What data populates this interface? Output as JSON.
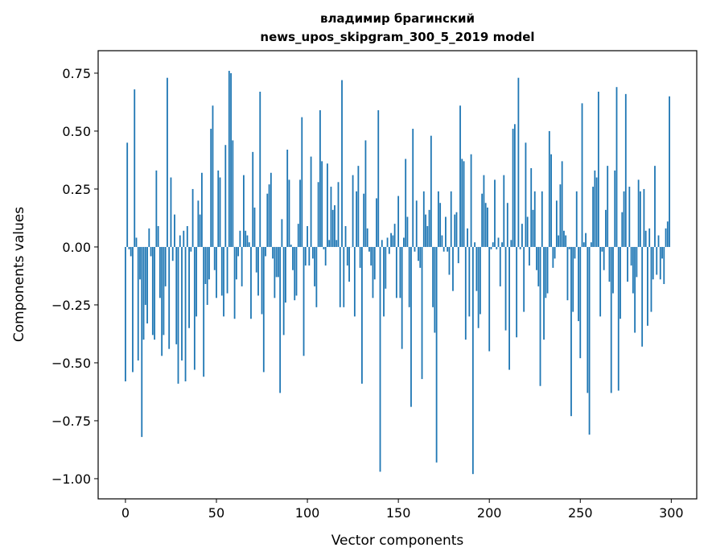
{
  "chart_data": {
    "type": "bar",
    "title": "владимир брагинский",
    "subtitle": "news_upos_skipgram_300_5_2019 model",
    "xlabel": "Vector components",
    "ylabel": "Components values",
    "xlim": [
      -15,
      314
    ],
    "ylim": [
      -1.087,
      0.847
    ],
    "xticks": [
      0,
      50,
      100,
      150,
      200,
      250,
      300
    ],
    "xtick_labels": [
      "0",
      "50",
      "100",
      "150",
      "200",
      "250",
      "300"
    ],
    "yticks": [
      -1.0,
      -0.75,
      -0.5,
      -0.25,
      0.0,
      0.25,
      0.5,
      0.75
    ],
    "ytick_labels": [
      "−1.00",
      "−0.75",
      "−0.50",
      "−0.25",
      "0.00",
      "0.25",
      "0.50",
      "0.75"
    ],
    "grid": false,
    "bar_color": "#1f77b4",
    "bar_width": 0.8,
    "values": [
      -0.58,
      0.45,
      -0.01,
      -0.04,
      -0.54,
      0.68,
      0.04,
      -0.49,
      -0.14,
      -0.82,
      -0.4,
      -0.25,
      -0.33,
      0.08,
      -0.04,
      -0.38,
      -0.4,
      0.33,
      0.09,
      -0.22,
      -0.47,
      -0.38,
      -0.17,
      0.73,
      -0.44,
      0.3,
      -0.06,
      0.14,
      -0.42,
      -0.59,
      0.05,
      -0.49,
      0.07,
      -0.58,
      0.09,
      -0.35,
      -0.02,
      0.25,
      -0.53,
      -0.3,
      0.2,
      0.14,
      0.32,
      -0.56,
      -0.16,
      -0.25,
      -0.14,
      0.51,
      0.61,
      -0.1,
      -0.22,
      0.33,
      0.3,
      -0.21,
      -0.3,
      0.44,
      -0.2,
      0.76,
      0.75,
      0.46,
      -0.31,
      -0.14,
      -0.04,
      0.07,
      -0.17,
      0.31,
      0.07,
      0.05,
      0.02,
      -0.31,
      0.41,
      0.17,
      -0.11,
      -0.21,
      0.67,
      -0.29,
      -0.54,
      -0.04,
      0.23,
      0.27,
      0.32,
      -0.05,
      -0.22,
      -0.13,
      -0.13,
      -0.63,
      0.12,
      -0.38,
      -0.24,
      0.42,
      0.29,
      0.01,
      -0.1,
      -0.23,
      -0.21,
      0.1,
      0.29,
      0.56,
      -0.47,
      -0.08,
      0.09,
      -0.08,
      0.39,
      -0.05,
      -0.17,
      -0.26,
      0.28,
      0.59,
      0.37,
      -0.01,
      -0.08,
      0.36,
      0.03,
      0.26,
      0.16,
      0.18,
      0.03,
      0.28,
      -0.26,
      0.72,
      -0.26,
      0.09,
      -0.08,
      -0.15,
      0.0,
      0.31,
      -0.3,
      0.24,
      0.35,
      -0.09,
      -0.59,
      0.23,
      0.46,
      0.08,
      -0.02,
      -0.08,
      -0.22,
      -0.14,
      0.21,
      0.59,
      -0.97,
      0.03,
      -0.3,
      -0.18,
      0.04,
      -0.03,
      0.06,
      0.05,
      0.1,
      -0.22,
      0.22,
      -0.22,
      -0.44,
      0.04,
      0.38,
      0.13,
      -0.26,
      -0.69,
      0.51,
      -0.02,
      0.2,
      -0.06,
      -0.09,
      -0.57,
      0.24,
      0.14,
      0.09,
      0.16,
      0.48,
      -0.26,
      -0.37,
      -0.93,
      0.24,
      0.19,
      0.05,
      -0.02,
      0.13,
      -0.02,
      -0.12,
      0.24,
      -0.19,
      0.14,
      0.15,
      -0.07,
      0.61,
      0.38,
      0.37,
      -0.4,
      0.08,
      -0.3,
      0.4,
      -0.98,
      0.02,
      -0.19,
      -0.35,
      -0.29,
      0.23,
      0.31,
      0.19,
      0.17,
      -0.45,
      -0.01,
      0.02,
      0.29,
      -0.01,
      0.04,
      -0.17,
      0.02,
      0.31,
      -0.36,
      0.19,
      -0.53,
      0.03,
      0.51,
      0.53,
      -0.39,
      0.73,
      -0.01,
      0.1,
      -0.28,
      0.45,
      0.13,
      -0.08,
      0.34,
      0.16,
      0.24,
      -0.1,
      -0.17,
      -0.6,
      0.24,
      -0.4,
      -0.22,
      -0.2,
      0.5,
      0.4,
      -0.09,
      -0.05,
      0.2,
      0.05,
      0.27,
      0.37,
      0.07,
      0.05,
      -0.23,
      -0.01,
      -0.73,
      -0.28,
      -0.05,
      0.24,
      -0.32,
      -0.48,
      0.62,
      0.02,
      0.06,
      -0.63,
      -0.81,
      0.02,
      0.26,
      0.33,
      0.3,
      0.67,
      -0.3,
      -0.02,
      -0.1,
      0.16,
      0.35,
      -0.15,
      -0.63,
      -0.2,
      0.33,
      0.69,
      -0.62,
      -0.31,
      0.15,
      0.24,
      0.66,
      -0.15,
      0.26,
      -0.08,
      -0.2,
      -0.37,
      -0.13,
      0.29,
      0.24,
      -0.43,
      0.25,
      0.07,
      -0.34,
      0.08,
      -0.28,
      -0.14,
      0.35,
      -0.12,
      0.05,
      -0.14,
      -0.05,
      -0.16,
      0.08,
      0.11,
      0.65
    ]
  }
}
